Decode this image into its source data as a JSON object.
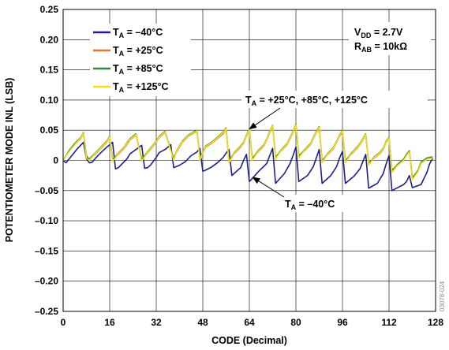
{
  "chart_data": {
    "type": "line",
    "title": "",
    "xlabel": "CODE (Decimal)",
    "ylabel": "POTENTIOMETER MODE INL (LSB)",
    "xlim": [
      0,
      128
    ],
    "ylim": [
      -0.25,
      0.25
    ],
    "xticks": [
      0,
      16,
      32,
      48,
      64,
      80,
      96,
      112,
      128
    ],
    "yticks": [
      0.25,
      0.2,
      0.15,
      0.1,
      0.05,
      0,
      -0.05,
      -0.1,
      -0.15,
      -0.2,
      -0.25
    ],
    "ytick_labels": [
      "0.25",
      "0.20",
      "0.15",
      "0.10",
      "0.05",
      "0",
      "–0.05",
      "–0.10",
      "–0.15",
      "–0.20",
      "–0.25"
    ],
    "grid": true,
    "legend_position": "top-left",
    "conditions": {
      "vdd": {
        "main": "V",
        "sub": "DD",
        "rest": " = 2.7V"
      },
      "rab": {
        "main": "R",
        "sub": "AB",
        "rest": " = 10kΩ"
      }
    },
    "series": [
      {
        "name": "T_A = –40°C",
        "legend": {
          "main": "T",
          "sub": "A",
          "rest": " = –40°C"
        },
        "color": "#1f1f8c",
        "x": [
          0,
          1,
          3,
          5,
          7,
          8,
          9,
          10,
          11,
          13,
          15,
          17,
          18,
          19,
          20,
          22,
          23,
          25,
          27,
          28,
          29,
          30,
          32,
          33,
          35,
          37,
          38,
          39,
          40,
          42,
          44,
          46,
          47,
          48,
          49,
          51,
          53,
          55,
          56,
          57,
          58,
          61,
          62,
          63,
          64,
          65,
          67,
          70,
          71,
          72,
          73,
          76,
          78,
          79,
          80,
          81,
          84,
          86,
          87,
          88,
          89,
          92,
          94,
          95,
          96,
          97,
          100,
          102,
          103,
          104,
          105,
          108,
          110,
          111,
          112,
          113,
          117,
          118,
          119,
          120,
          123,
          125,
          126,
          127
        ],
        "y": [
          0,
          -0.004,
          0.008,
          0.02,
          0.03,
          0.003,
          -0.004,
          -0.003,
          0.003,
          0.013,
          0.022,
          0.03,
          -0.014,
          -0.012,
          -0.007,
          0.003,
          0.011,
          0.018,
          0.025,
          -0.013,
          -0.012,
          -0.008,
          0.005,
          0.013,
          0.018,
          0.026,
          -0.012,
          -0.01,
          -0.008,
          -0.002,
          0.008,
          0.014,
          0.02,
          -0.018,
          -0.016,
          -0.011,
          -0.004,
          0.005,
          0.012,
          0.018,
          -0.025,
          -0.012,
          0,
          0.01,
          -0.035,
          -0.03,
          -0.019,
          -0.005,
          0.008,
          0.02,
          -0.038,
          -0.022,
          -0.005,
          0.008,
          0.022,
          -0.035,
          -0.025,
          -0.01,
          0.004,
          0.018,
          -0.038,
          -0.025,
          -0.01,
          0.004,
          0.015,
          -0.038,
          -0.026,
          -0.014,
          -0.002,
          0.01,
          -0.046,
          -0.038,
          -0.022,
          -0.006,
          0.008,
          -0.05,
          -0.04,
          -0.035,
          -0.025,
          -0.045,
          -0.04,
          -0.02,
          -0.005,
          0.003
        ]
      },
      {
        "name": "T_A = +25°C",
        "legend": {
          "main": "T",
          "sub": "A",
          "rest": " = +25°C"
        },
        "color": "#e8742a",
        "x": [
          0,
          2,
          4,
          6,
          7,
          8,
          9,
          11,
          13,
          15,
          16,
          17,
          19,
          21,
          22,
          23,
          25,
          27,
          29,
          31,
          32,
          33,
          35,
          38,
          39,
          40,
          41,
          43,
          46,
          47,
          48,
          49,
          51,
          53,
          55,
          56,
          57,
          59,
          61,
          62,
          63,
          64,
          65,
          67,
          69,
          70,
          71,
          72,
          73,
          75,
          77,
          78,
          79,
          80,
          81,
          83,
          85,
          86,
          87,
          88,
          89,
          91,
          93,
          94,
          95,
          96,
          97,
          99,
          101,
          102,
          103,
          104,
          105,
          107,
          109,
          110,
          111,
          112,
          113,
          115,
          117,
          118,
          119,
          120,
          122,
          123,
          125,
          127
        ],
        "y": [
          0,
          0.015,
          0.026,
          0.036,
          0.044,
          0.008,
          0.002,
          0.01,
          0.02,
          0.03,
          0.038,
          0.002,
          0.01,
          0.02,
          0.027,
          0.034,
          0.042,
          0.003,
          0.012,
          0.024,
          0.03,
          0.038,
          0.046,
          0.004,
          0.014,
          0.022,
          0.03,
          0.04,
          0.048,
          0.004,
          0.012,
          0.022,
          0.028,
          0.036,
          0.044,
          0.052,
          0,
          0.012,
          0.022,
          0.028,
          0.04,
          0.049,
          0.004,
          0.014,
          0.024,
          0.034,
          0.046,
          0.055,
          0.006,
          0.016,
          0.026,
          0.036,
          0.046,
          0.057,
          0.008,
          0.016,
          0.026,
          0.036,
          0.046,
          0.052,
          0,
          0.01,
          0.02,
          0.03,
          0.04,
          0.046,
          0,
          0.01,
          0.02,
          0.026,
          0.034,
          0.042,
          -0.004,
          0.004,
          0.012,
          0.018,
          0.03,
          0.036,
          -0.016,
          -0.008,
          0,
          0.008,
          0.014,
          -0.028,
          -0.018,
          -0.005,
          0.002,
          0.005
        ]
      },
      {
        "name": "T_A = +85°C",
        "legend": {
          "main": "T",
          "sub": "A",
          "rest": " = +85°C"
        },
        "color": "#2a8a3a",
        "x": [
          0,
          2,
          4,
          6,
          7,
          8,
          9,
          11,
          13,
          15,
          16,
          17,
          19,
          21,
          22,
          23,
          25,
          27,
          29,
          31,
          32,
          33,
          35,
          38,
          39,
          40,
          41,
          43,
          46,
          47,
          48,
          49,
          51,
          53,
          55,
          56,
          57,
          59,
          61,
          62,
          63,
          64,
          65,
          67,
          69,
          70,
          71,
          72,
          73,
          75,
          77,
          78,
          79,
          80,
          81,
          83,
          85,
          86,
          87,
          88,
          89,
          91,
          93,
          94,
          95,
          96,
          97,
          99,
          101,
          102,
          103,
          104,
          105,
          107,
          109,
          110,
          111,
          112,
          113,
          115,
          117,
          118,
          119,
          120,
          122,
          123,
          125,
          127
        ],
        "y": [
          0,
          0.016,
          0.028,
          0.038,
          0.046,
          0.006,
          0.002,
          0.012,
          0.022,
          0.032,
          0.04,
          0,
          0.012,
          0.022,
          0.03,
          0.036,
          0.044,
          0.001,
          0.014,
          0.026,
          0.032,
          0.04,
          0.048,
          0.002,
          0.016,
          0.024,
          0.032,
          0.042,
          0.05,
          0.002,
          0.014,
          0.024,
          0.03,
          0.038,
          0.047,
          0.054,
          -0.002,
          0.014,
          0.024,
          0.03,
          0.042,
          0.052,
          0.002,
          0.016,
          0.026,
          0.036,
          0.048,
          0.058,
          0.004,
          0.018,
          0.028,
          0.038,
          0.048,
          0.06,
          0.006,
          0.018,
          0.028,
          0.038,
          0.048,
          0.056,
          -0.002,
          0.012,
          0.022,
          0.032,
          0.042,
          0.05,
          -0.002,
          0.012,
          0.022,
          0.028,
          0.036,
          0.044,
          -0.006,
          0.006,
          0.014,
          0.02,
          0.032,
          0.038,
          -0.018,
          -0.006,
          0.002,
          0.01,
          0.016,
          -0.03,
          -0.016,
          -0.003,
          0.004,
          0.006
        ]
      },
      {
        "name": "T_A = +125°C",
        "legend": {
          "main": "T",
          "sub": "A",
          "rest": " = +125°C"
        },
        "color": "#f2e21e",
        "x": [
          0,
          2,
          4,
          6,
          7,
          8,
          9,
          11,
          13,
          15,
          16,
          17,
          19,
          21,
          22,
          23,
          25,
          27,
          29,
          31,
          32,
          33,
          35,
          38,
          39,
          40,
          41,
          43,
          46,
          47,
          48,
          49,
          51,
          53,
          55,
          56,
          57,
          59,
          61,
          62,
          63,
          64,
          65,
          67,
          69,
          70,
          71,
          72,
          73,
          75,
          77,
          78,
          79,
          80,
          81,
          83,
          85,
          86,
          87,
          88,
          89,
          91,
          93,
          94,
          95,
          96,
          97,
          99,
          101,
          102,
          103,
          104,
          105,
          107,
          109,
          110,
          111,
          112,
          113,
          115,
          117,
          118,
          119,
          120,
          122,
          123,
          125,
          127
        ],
        "y": [
          0,
          0.014,
          0.026,
          0.037,
          0.045,
          0.004,
          0,
          0.011,
          0.021,
          0.031,
          0.039,
          -0.002,
          0.011,
          0.021,
          0.029,
          0.035,
          0.043,
          -0.001,
          0.013,
          0.025,
          0.031,
          0.039,
          0.047,
          0,
          0.015,
          0.023,
          0.031,
          0.041,
          0.049,
          0,
          0.013,
          0.023,
          0.029,
          0.037,
          0.046,
          0.053,
          -0.004,
          0.013,
          0.023,
          0.029,
          0.041,
          0.051,
          0,
          0.015,
          0.025,
          0.035,
          0.047,
          0.057,
          0.002,
          0.017,
          0.027,
          0.037,
          0.047,
          0.059,
          0.004,
          0.017,
          0.027,
          0.037,
          0.047,
          0.055,
          -0.004,
          0.011,
          0.021,
          0.031,
          0.041,
          0.049,
          -0.004,
          0.011,
          0.021,
          0.027,
          0.035,
          0.043,
          -0.008,
          0.005,
          0.013,
          0.019,
          0.031,
          0.037,
          -0.02,
          -0.008,
          0,
          0.008,
          0.014,
          -0.032,
          -0.018,
          -0.005,
          0.002,
          0.004
        ]
      }
    ],
    "annotations": [
      {
        "main": "T",
        "sub": "A",
        "rest": " = +25°C, +85°C, +125°C",
        "arrow_to_x": 64,
        "arrow_to_y": 0.052
      },
      {
        "main": "T",
        "sub": "A",
        "rest": " = –40°C",
        "arrow_to_x": 63,
        "arrow_to_y": -0.028
      }
    ],
    "figure_id": "03078-024"
  }
}
